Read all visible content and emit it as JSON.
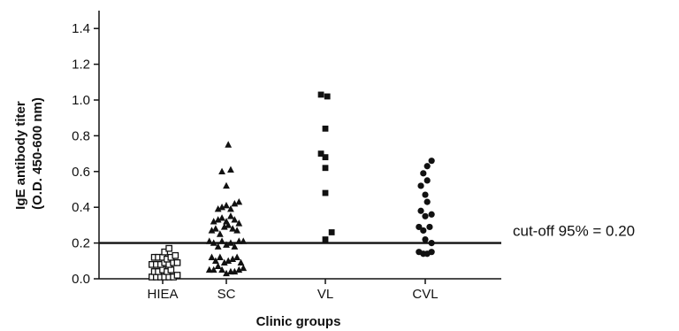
{
  "chart_data": {
    "type": "scatter",
    "xlabel": "Clinic groups",
    "ylabel_line1": "IgE antibody titer",
    "ylabel_line2": "(O.D. 450-600 nm)",
    "categories": [
      "HIEA",
      "SC",
      "VL",
      "CVL"
    ],
    "y_ticks": [
      "0.0",
      "0.2",
      "0.4",
      "0.6",
      "0.8",
      "1.0",
      "1.2",
      "1.4"
    ],
    "ylim": [
      0,
      1.5
    ],
    "grid": false,
    "cutoff": {
      "value": 0.2,
      "label": "cut-off 95% = 0.20"
    },
    "series": [
      {
        "category": "HIEA",
        "marker": "square-open",
        "points": [
          [
            -0.22,
            0.01
          ],
          [
            -0.13,
            0.01
          ],
          [
            -0.04,
            0.01
          ],
          [
            0.04,
            0.01
          ],
          [
            0.13,
            0.01
          ],
          [
            0.22,
            0.01
          ],
          [
            0.3,
            0.02
          ],
          [
            -0.17,
            0.04
          ],
          [
            -0.09,
            0.04
          ],
          [
            0.0,
            0.05
          ],
          [
            0.09,
            0.04
          ],
          [
            0.17,
            0.05
          ],
          [
            -0.22,
            0.08
          ],
          [
            -0.13,
            0.08
          ],
          [
            -0.04,
            0.08
          ],
          [
            0.04,
            0.09
          ],
          [
            0.13,
            0.08
          ],
          [
            0.22,
            0.09
          ],
          [
            0.3,
            0.09
          ],
          [
            -0.17,
            0.12
          ],
          [
            -0.09,
            0.12
          ],
          [
            0.0,
            0.12
          ],
          [
            0.09,
            0.11
          ],
          [
            0.17,
            0.12
          ],
          [
            0.26,
            0.13
          ],
          [
            0.04,
            0.15
          ],
          [
            0.13,
            0.17
          ]
        ]
      },
      {
        "category": "SC",
        "marker": "triangle",
        "points": [
          [
            -0.35,
            0.05
          ],
          [
            -0.26,
            0.05
          ],
          [
            -0.17,
            0.07
          ],
          [
            -0.09,
            0.05
          ],
          [
            0.0,
            0.03
          ],
          [
            0.09,
            0.04
          ],
          [
            0.17,
            0.04
          ],
          [
            0.26,
            0.05
          ],
          [
            0.35,
            0.06
          ],
          [
            -0.3,
            0.12
          ],
          [
            -0.22,
            0.1
          ],
          [
            -0.13,
            0.12
          ],
          [
            -0.04,
            0.09
          ],
          [
            0.04,
            0.1
          ],
          [
            0.13,
            0.11
          ],
          [
            0.22,
            0.12
          ],
          [
            0.3,
            0.09
          ],
          [
            -0.35,
            0.21
          ],
          [
            -0.26,
            0.2
          ],
          [
            -0.17,
            0.18
          ],
          [
            -0.09,
            0.21
          ],
          [
            0.0,
            0.19
          ],
          [
            0.09,
            0.2
          ],
          [
            0.17,
            0.18
          ],
          [
            0.26,
            0.21
          ],
          [
            0.35,
            0.21
          ],
          [
            -0.3,
            0.27
          ],
          [
            -0.22,
            0.28
          ],
          [
            -0.13,
            0.25
          ],
          [
            -0.04,
            0.29
          ],
          [
            0.04,
            0.3
          ],
          [
            0.13,
            0.28
          ],
          [
            0.22,
            0.27
          ],
          [
            -0.26,
            0.32
          ],
          [
            -0.17,
            0.33
          ],
          [
            -0.09,
            0.34
          ],
          [
            0.0,
            0.32
          ],
          [
            0.09,
            0.35
          ],
          [
            0.17,
            0.33
          ],
          [
            0.26,
            0.31
          ],
          [
            -0.17,
            0.39
          ],
          [
            -0.09,
            0.4
          ],
          [
            0.0,
            0.41
          ],
          [
            0.09,
            0.39
          ],
          [
            0.17,
            0.42
          ],
          [
            0.26,
            0.43
          ],
          [
            0.0,
            0.52
          ],
          [
            -0.09,
            0.6
          ],
          [
            0.09,
            0.61
          ],
          [
            0.04,
            0.75
          ]
        ]
      },
      {
        "category": "VL",
        "marker": "square-filled",
        "points": [
          [
            -0.09,
            1.03
          ],
          [
            0.04,
            1.02
          ],
          [
            0.0,
            0.84
          ],
          [
            -0.09,
            0.7
          ],
          [
            0.0,
            0.68
          ],
          [
            0.0,
            0.62
          ],
          [
            0.0,
            0.48
          ],
          [
            0.13,
            0.26
          ],
          [
            0.0,
            0.22
          ]
        ]
      },
      {
        "category": "CVL",
        "marker": "circle-filled",
        "points": [
          [
            0.13,
            0.66
          ],
          [
            0.04,
            0.63
          ],
          [
            -0.04,
            0.59
          ],
          [
            0.04,
            0.55
          ],
          [
            -0.09,
            0.52
          ],
          [
            0.0,
            0.47
          ],
          [
            0.04,
            0.43
          ],
          [
            -0.09,
            0.38
          ],
          [
            0.0,
            0.35
          ],
          [
            0.13,
            0.36
          ],
          [
            -0.13,
            0.29
          ],
          [
            -0.04,
            0.27
          ],
          [
            0.09,
            0.29
          ],
          [
            -0.13,
            0.15
          ],
          [
            -0.04,
            0.14
          ],
          [
            0.04,
            0.14
          ],
          [
            0.13,
            0.15
          ],
          [
            0.0,
            0.22
          ],
          [
            0.13,
            0.2
          ]
        ]
      }
    ]
  }
}
